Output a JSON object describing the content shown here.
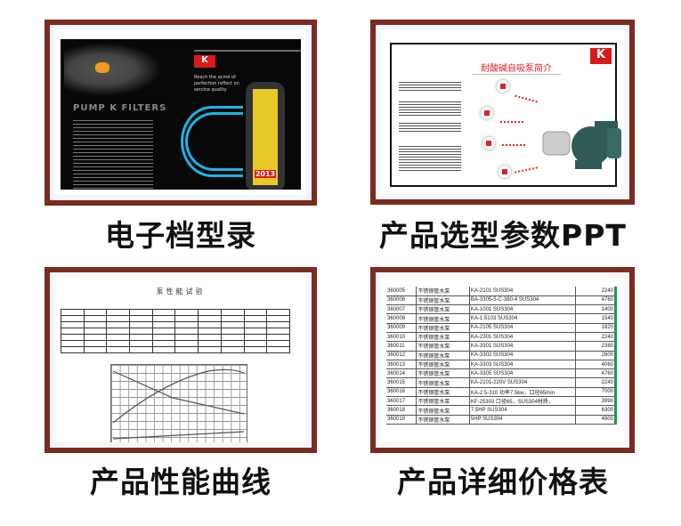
{
  "colors": {
    "frame": "#7b2b20",
    "brand_red": "#d91a1a",
    "table_edge": "#1a9a4a",
    "arc_blue": "#19b5e8",
    "yellow": "#e7c929"
  },
  "panels": [
    {
      "caption": "电子档型录",
      "thumb": {
        "brand": "PUMP K FILTERS",
        "logo": "K",
        "slogan": "Reach the acme of perfection reflect on service quality",
        "year": "2013"
      }
    },
    {
      "caption": "产品选型参数PPT",
      "thumb": {
        "title": "耐酸碱自吸泵简介",
        "logo": "K"
      }
    },
    {
      "caption": "产品性能曲线",
      "thumb": {
        "title": "泵性能试验"
      }
    },
    {
      "caption": "产品详细价格表",
      "thumb": {
        "rows": [
          [
            "360005",
            "不锈钢管水泵",
            "KA-2101 SUS304",
            "2240"
          ],
          [
            "360006",
            "不锈钢管水泵",
            "BA-3305-5-C-380-4 SUS304",
            "4760"
          ],
          [
            "360007",
            "不锈钢管水泵",
            "KA-1001 SUS304",
            "1400"
          ],
          [
            "360008",
            "不锈钢管水泵",
            "KA-1.5103 SUS304",
            "1540"
          ],
          [
            "360009",
            "不锈钢管水泵",
            "KA-2105 SUS304",
            "1820"
          ],
          [
            "360010",
            "不锈钢管水泵",
            "KA-2301 SUS304",
            "2240"
          ],
          [
            "360011",
            "不锈钢管水泵",
            "KA-3301 SUS304",
            "2380"
          ],
          [
            "360012",
            "不锈钢管水泵",
            "KA-3302 SUS304",
            "2800"
          ],
          [
            "360013",
            "不锈钢管水泵",
            "KA-3303 SUS304",
            "4060"
          ],
          [
            "360014",
            "不锈钢管水泵",
            "KA-3305 SUS304",
            "4760"
          ],
          [
            "360015",
            "不锈钢管水泵",
            "KA-2101-220V SUS304",
            "2240"
          ],
          [
            "360016",
            "不锈钢管水泵",
            "KA-2 5-310 功率7.5kw，口径65mm",
            "7000"
          ],
          [
            "360017",
            "不锈钢管水泵",
            "KF-25303 口径65，SUS304材质，",
            "3990"
          ],
          [
            "360018",
            "不锈钢管水泵",
            "7.5HP SUS304",
            "6300"
          ],
          [
            "360019",
            "不锈钢管水泵",
            "5HP SUS304",
            "4900"
          ]
        ]
      }
    }
  ]
}
